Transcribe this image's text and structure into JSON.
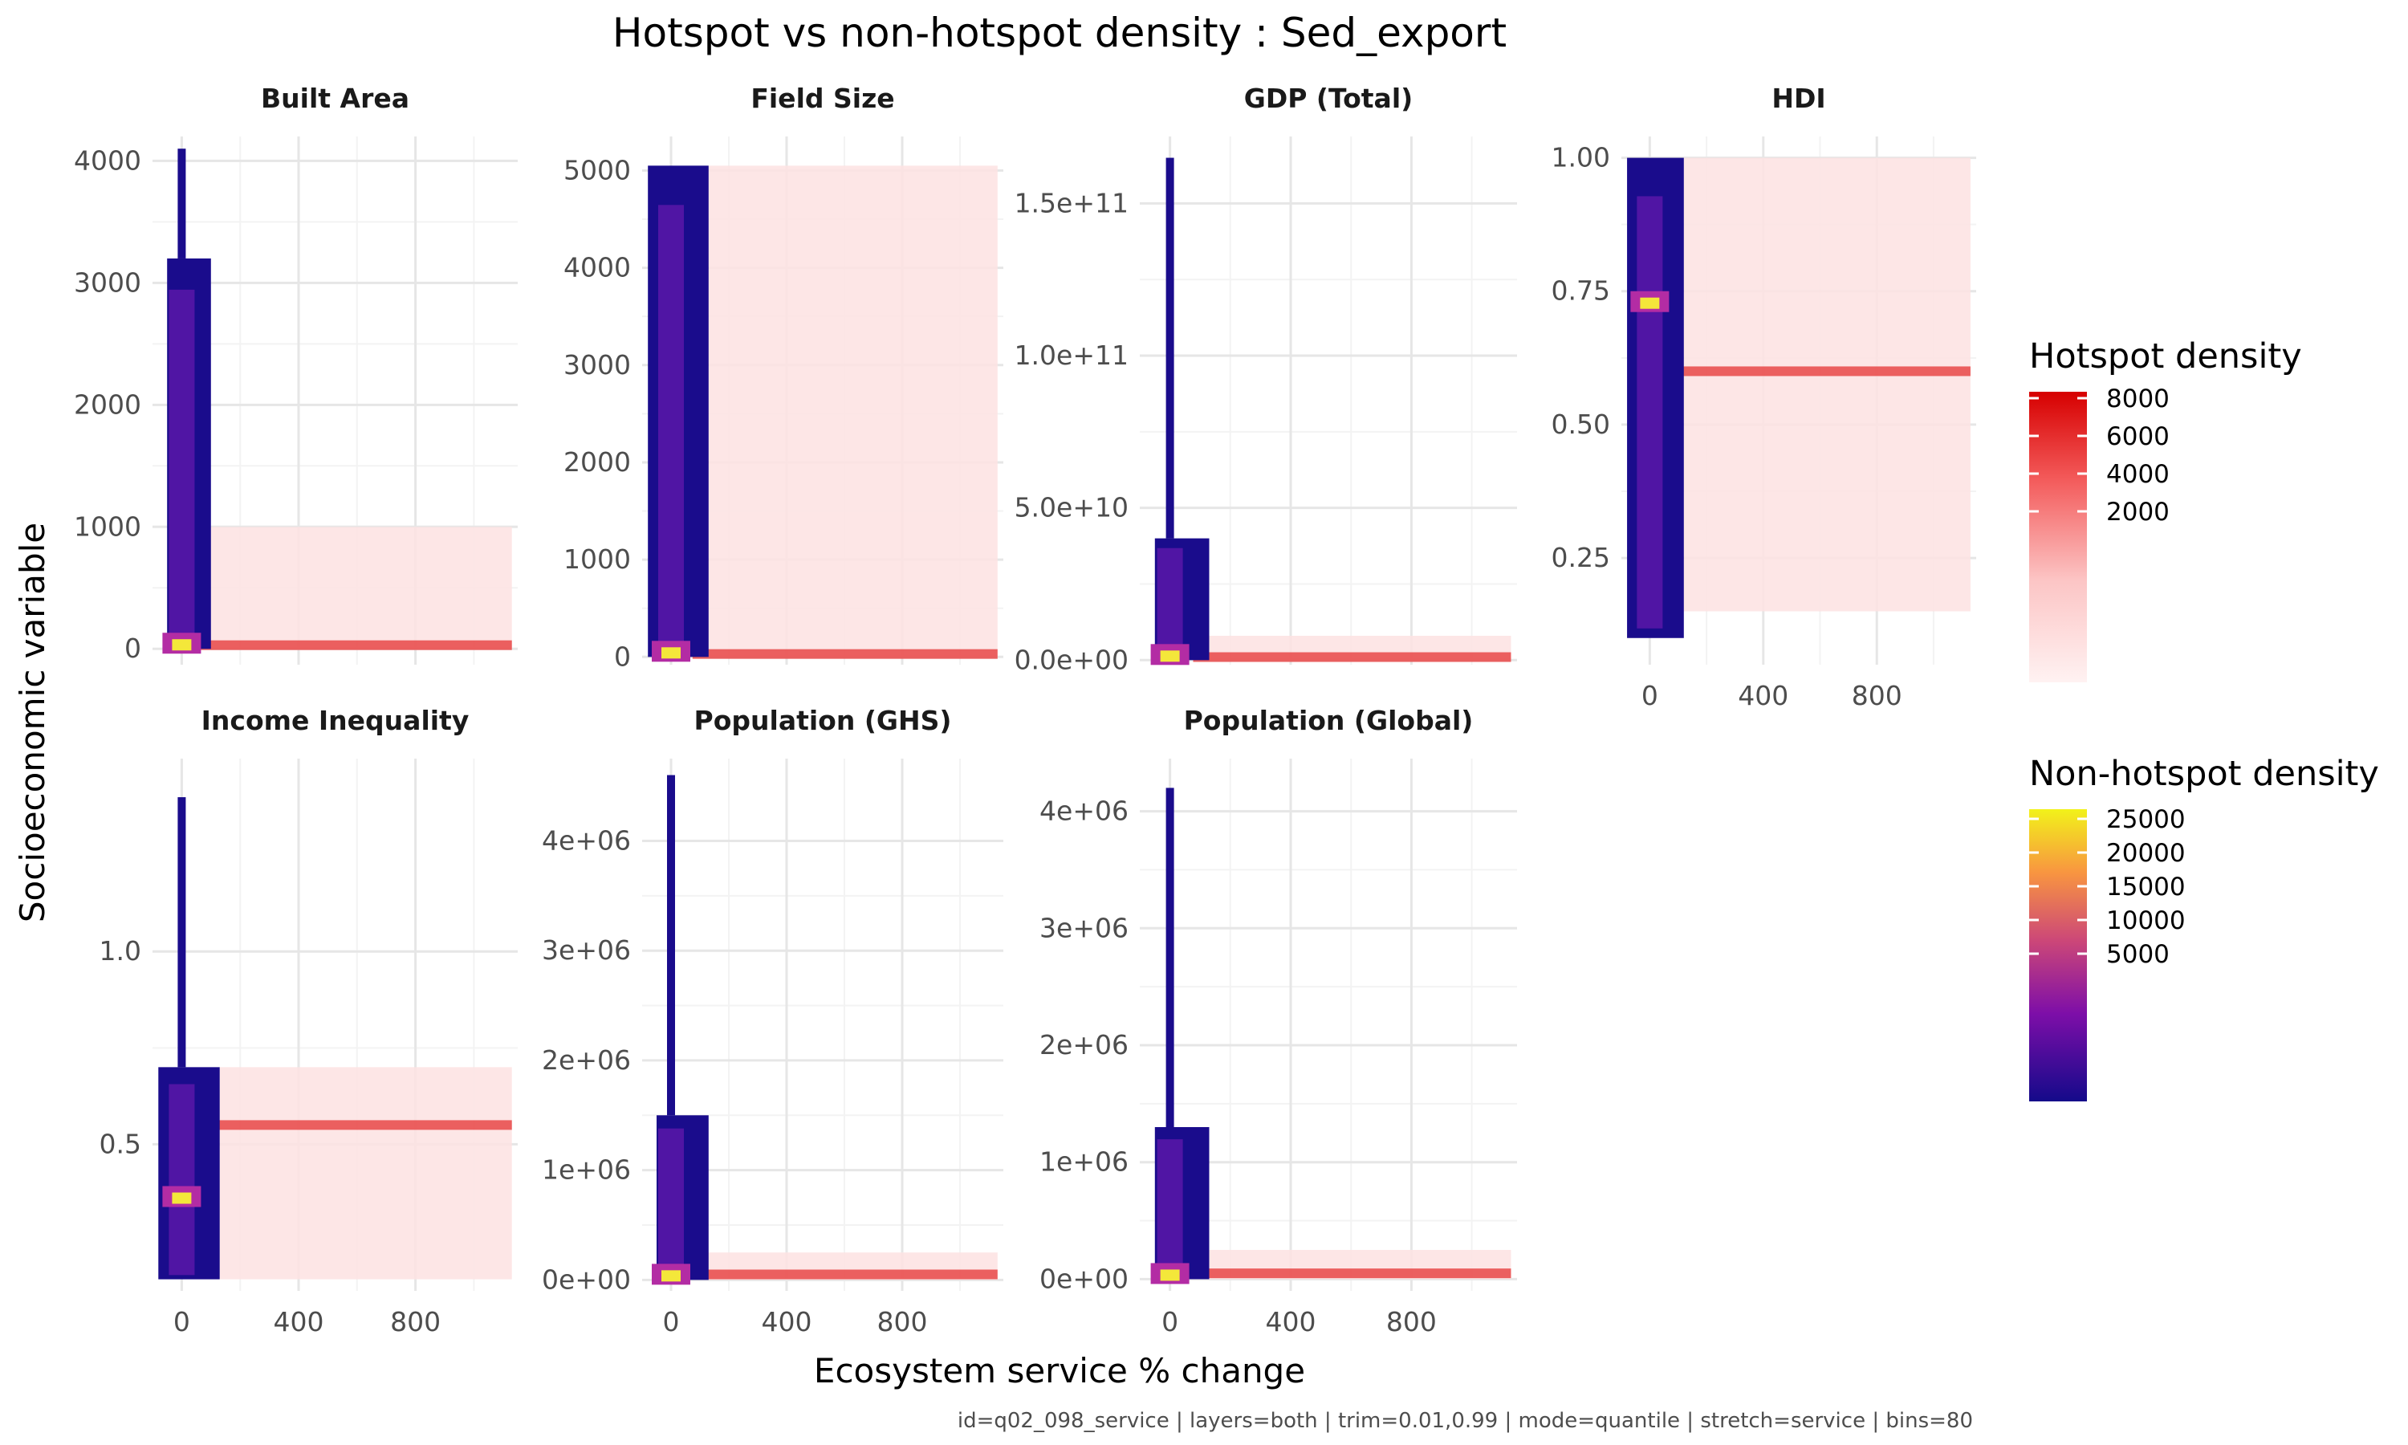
{
  "title": "Hotspot vs non-hotspot density : Sed_export",
  "xlabel": "Ecosystem service % change",
  "ylabel": "Socioeconomic variable",
  "caption": "id=q02_098_service | layers=both | trim=0.01,0.99 | mode=quantile | stretch=service | bins=80",
  "colors": {
    "nonhot_low": "#1a0c8c",
    "nonhot_mid": "#b32ca4",
    "nonhot_high": "#f4e73a",
    "hot_low": "#fde6e6",
    "hot_high": "#d60000"
  },
  "legends": {
    "hotspot": {
      "title": "Hotspot density",
      "ticks": [
        "8000",
        "6000",
        "4000",
        "2000"
      ]
    },
    "nonhotspot": {
      "title": "Non-hotspot density",
      "ticks": [
        "25000",
        "20000",
        "15000",
        "10000",
        "5000"
      ]
    }
  },
  "chart_data": {
    "type": "heatmap",
    "x_ticks": [
      0,
      400,
      800
    ],
    "x_range": [
      -100,
      1150
    ],
    "grid": true,
    "panels": [
      {
        "title": "Built Area",
        "ylim": [
          -130,
          4200
        ],
        "yticks": [
          0,
          1000,
          2000,
          3000,
          4000
        ],
        "ylabels": [
          "0",
          "1000",
          "2000",
          "3000",
          "4000"
        ],
        "nonhotspot": {
          "x": [
            -50,
            100
          ],
          "y": [
            0,
            3200
          ],
          "peak_y": 0,
          "tail": 4100
        },
        "hotspot": {
          "x": [
            100,
            1130
          ],
          "y": [
            0,
            1000
          ],
          "band_y": 30
        }
      },
      {
        "title": "Field Size",
        "ylim": [
          -80,
          5350
        ],
        "yticks": [
          0,
          1000,
          2000,
          3000,
          4000,
          5000
        ],
        "ylabels": [
          "0",
          "1000",
          "2000",
          "3000",
          "4000",
          "5000"
        ],
        "nonhotspot": {
          "x": [
            -80,
            130
          ],
          "y": [
            0,
            5050
          ],
          "peak_y": 0,
          "tail": 5050
        },
        "hotspot": {
          "x": [
            130,
            1130
          ],
          "y": [
            0,
            5050
          ],
          "band_y": 30
        }
      },
      {
        "title": "GDP (Total)",
        "ylim": [
          -1500000000.0,
          172000000000.0
        ],
        "yticks": [
          0,
          50000000000.0,
          100000000000.0,
          150000000000.0
        ],
        "ylabels": [
          "0.0e+00",
          "5.0e+10",
          "1.0e+11",
          "1.5e+11"
        ],
        "nonhotspot": {
          "x": [
            -50,
            130
          ],
          "y": [
            0,
            40000000000.0
          ],
          "peak_y": 0,
          "tail": 165000000000.0
        },
        "hotspot": {
          "x": [
            130,
            1130
          ],
          "y": [
            0,
            8000000000.0
          ],
          "band_y": 1000000000.0
        }
      },
      {
        "title": "HDI",
        "ylim": [
          0.05,
          1.04
        ],
        "yticks": [
          0.25,
          0.5,
          0.75,
          1.0
        ],
        "ylabels": [
          "0.25",
          "0.50",
          "0.75",
          "1.00"
        ],
        "nonhotspot": {
          "x": [
            -80,
            120
          ],
          "y": [
            0.1,
            1.0
          ],
          "peak_y": 0.72,
          "tail": 1.0
        },
        "hotspot": {
          "x": [
            120,
            1130
          ],
          "y": [
            0.15,
            1.0
          ],
          "band_y": 0.6
        }
      },
      {
        "title": "Income Inequality",
        "ylim": [
          0.12,
          1.5
        ],
        "yticks": [
          0.5,
          1.0
        ],
        "ylabels": [
          "0.5",
          "1.0"
        ],
        "nonhotspot": {
          "x": [
            -80,
            130
          ],
          "y": [
            0.15,
            0.7
          ],
          "peak_y": 0.35,
          "tail": 1.4
        },
        "hotspot": {
          "x": [
            130,
            1130
          ],
          "y": [
            0.15,
            0.7
          ],
          "band_y": 0.55
        }
      },
      {
        "title": "Population (GHS)",
        "ylim": [
          -100000.0,
          4750000.0
        ],
        "yticks": [
          0,
          1000000.0,
          2000000.0,
          3000000.0,
          4000000.0
        ],
        "ylabels": [
          "0e+00",
          "1e+06",
          "2e+06",
          "3e+06",
          "4e+06"
        ],
        "nonhotspot": {
          "x": [
            -50,
            130
          ],
          "y": [
            0,
            1500000.0
          ],
          "peak_y": 0,
          "tail": 4600000.0
        },
        "hotspot": {
          "x": [
            130,
            1130
          ],
          "y": [
            0,
            250000.0
          ],
          "band_y": 50000.0
        }
      },
      {
        "title": "Population (Global)",
        "ylim": [
          -100000.0,
          4450000.0
        ],
        "yticks": [
          0,
          1000000.0,
          2000000.0,
          3000000.0,
          4000000.0
        ],
        "ylabels": [
          "0e+00",
          "1e+06",
          "2e+06",
          "3e+06",
          "4e+06"
        ],
        "nonhotspot": {
          "x": [
            -50,
            130
          ],
          "y": [
            0,
            1300000.0
          ],
          "peak_y": 0,
          "tail": 4200000.0
        },
        "hotspot": {
          "x": [
            130,
            1130
          ],
          "y": [
            0,
            250000.0
          ],
          "band_y": 50000.0
        }
      }
    ]
  }
}
